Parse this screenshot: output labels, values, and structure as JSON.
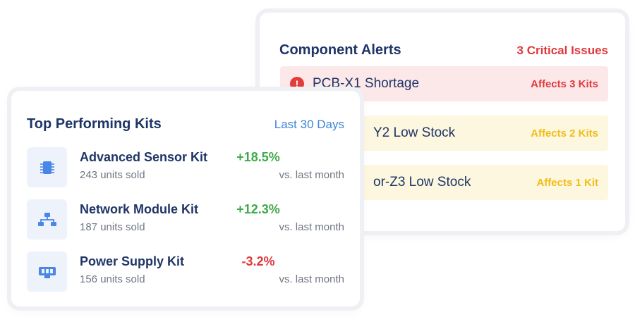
{
  "alerts": {
    "title": "Component Alerts",
    "critical_count": "3 Critical Issues",
    "items": [
      {
        "name": "PCB-X1 Shortage",
        "affects": "Affects 3 Kits",
        "level": "critical",
        "icon": "alert-circle-icon"
      },
      {
        "name": "Y2 Low Stock",
        "affects": "Affects 2 Kits",
        "level": "warning"
      },
      {
        "name": "or-Z3 Low Stock",
        "affects": "Affects 1 Kit",
        "level": "warning"
      }
    ]
  },
  "kits": {
    "title": "Top Performing Kits",
    "range": "Last 30 Days",
    "items": [
      {
        "name": "Advanced Sensor Kit",
        "units": "243 units sold",
        "change": "+18.5%",
        "compare": "vs. last month",
        "trend": "up",
        "icon": "chip-icon"
      },
      {
        "name": "Network Module Kit",
        "units": "187 units sold",
        "change": "+12.3%",
        "compare": "vs. last month",
        "trend": "up",
        "icon": "network-icon"
      },
      {
        "name": "Power Supply Kit",
        "units": "156 units sold",
        "change": "-3.2%",
        "compare": "vs. last month",
        "trend": "down",
        "icon": "power-supply-icon"
      }
    ]
  },
  "colors": {
    "navy": "#1e3566",
    "critical": "#e0383b",
    "warning": "#f2bd19",
    "positive": "#3faa4a",
    "link": "#3f84d8",
    "icon_blue": "#4a86e8"
  }
}
